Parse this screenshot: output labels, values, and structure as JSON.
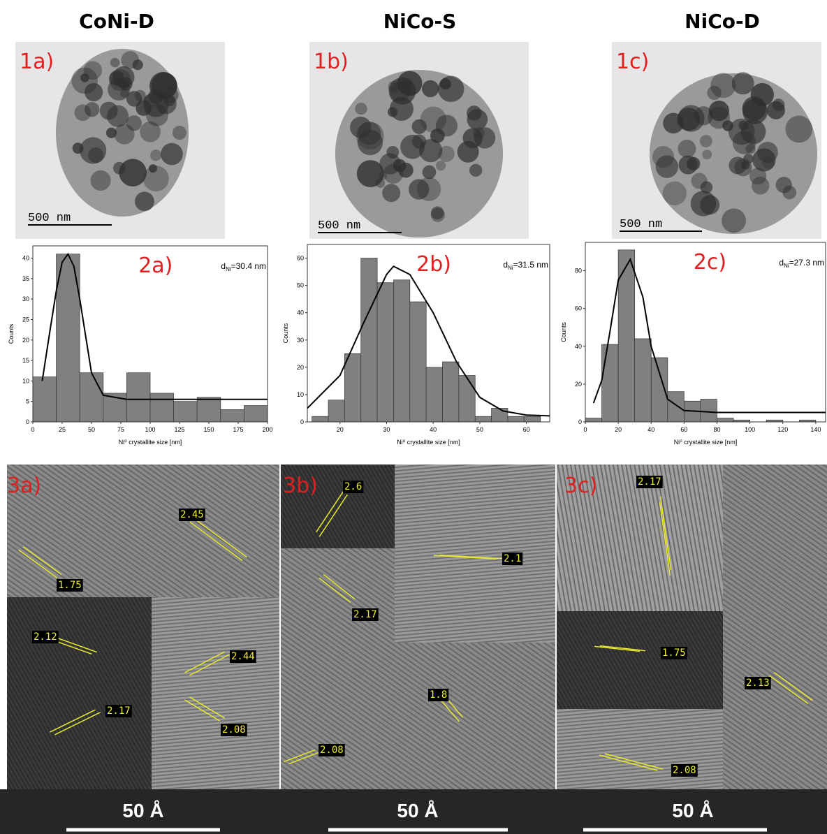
{
  "columns": [
    {
      "title": "CoNi-D",
      "tem": {
        "label": "1a)",
        "scale": "500 nm"
      },
      "hrtem": {
        "label": "3a)",
        "spacings": [
          "2.45",
          "1.75",
          "2.12",
          "2.17",
          "2.44",
          "2.08"
        ],
        "scale": "50 Å"
      }
    },
    {
      "title": "NiCo-S",
      "tem": {
        "label": "1b)",
        "scale": "500 nm"
      },
      "hrtem": {
        "label": "3b)",
        "spacings": [
          "2.6",
          "2.1",
          "2.17",
          "1.8",
          "2.08"
        ],
        "scale": "50 Å"
      }
    },
    {
      "title": "NiCo-D",
      "tem": {
        "label": "1c)",
        "scale": "500 nm"
      },
      "hrtem": {
        "label": "3c)",
        "spacings": [
          "2.17",
          "1.75",
          "2.13",
          "2.08"
        ],
        "scale": "50 Å"
      }
    }
  ],
  "chart_data": [
    {
      "type": "histogram",
      "panel": "2a)",
      "annotation": {
        "symbol": "d",
        "subscript": "Ni",
        "text": "=30.4 nm"
      },
      "x_label": "Ni⁰ crystallite size [nm]",
      "y_label": "Counts",
      "color": "#808080",
      "bins": [
        0,
        20,
        40,
        60,
        80,
        100,
        120,
        140,
        160,
        180,
        200
      ],
      "values": [
        11,
        41,
        12,
        7,
        12,
        7,
        5,
        6,
        3,
        4
      ],
      "xlim": [
        0,
        200
      ],
      "xticks": [
        0,
        25,
        50,
        75,
        100,
        125,
        150,
        175,
        200
      ],
      "ylim": [
        0,
        43
      ],
      "yticks": [
        0,
        5,
        10,
        15,
        20,
        25,
        30,
        35,
        40
      ],
      "fit": {
        "color": "#000000",
        "x": [
          8,
          15,
          20,
          25,
          30,
          35,
          40,
          50,
          60,
          80,
          120,
          160,
          200
        ],
        "values": [
          10,
          23,
          32,
          39,
          41,
          38,
          30,
          12,
          6.5,
          5.5,
          5.5,
          5.5,
          5.5
        ]
      }
    },
    {
      "type": "histogram",
      "panel": "2b)",
      "annotation": {
        "symbol": "d",
        "subscript": "Ni",
        "text": "=31.5 nm"
      },
      "x_label": "Ni⁰ crystallite size [nm]",
      "y_label": "Counts",
      "color": "#808080",
      "bins": [
        14,
        17.5,
        21,
        24.5,
        28,
        31.5,
        35,
        38.5,
        42,
        45.5,
        49,
        52.5,
        56,
        59.5,
        63
      ],
      "values": [
        2,
        8,
        25,
        60,
        51,
        52,
        44,
        20,
        22,
        17,
        2,
        5,
        2,
        2
      ],
      "xlim": [
        13,
        65
      ],
      "xticks": [
        20,
        30,
        40,
        50,
        60
      ],
      "ylim": [
        0,
        65
      ],
      "yticks": [
        0,
        10,
        20,
        30,
        40,
        50,
        60
      ],
      "fit": {
        "color": "#000000",
        "x": [
          13,
          20,
          25,
          30,
          31.5,
          35,
          40,
          45,
          50,
          55,
          60,
          65
        ],
        "values": [
          5,
          17,
          36,
          54,
          57,
          54,
          40,
          22,
          9,
          4,
          2.5,
          2.2
        ]
      }
    },
    {
      "type": "histogram",
      "panel": "2c)",
      "annotation": {
        "symbol": "d",
        "subscript": "Ni",
        "text": "=27.3 nm"
      },
      "x_label": "Ni⁰ crystallite size [nm]",
      "y_label": "Counts",
      "color": "#808080",
      "bins": [
        0,
        10,
        20,
        30,
        40,
        50,
        60,
        70,
        80,
        90,
        100,
        110,
        120,
        130,
        140
      ],
      "values": [
        2,
        41,
        91,
        44,
        34,
        16,
        11,
        12,
        2,
        1,
        0,
        1,
        0,
        1
      ],
      "xlim": [
        0,
        146
      ],
      "xticks": [
        0,
        20,
        40,
        60,
        80,
        100,
        120,
        140
      ],
      "ylim": [
        0,
        95
      ],
      "yticks": [
        0,
        20,
        40,
        60,
        80
      ],
      "fit": {
        "color": "#000000",
        "x": [
          5,
          10,
          15,
          20,
          27.3,
          35,
          40,
          50,
          60,
          80,
          146
        ],
        "values": [
          10,
          22,
          48,
          75,
          86,
          66,
          40,
          12,
          6,
          5,
          5
        ]
      }
    }
  ]
}
